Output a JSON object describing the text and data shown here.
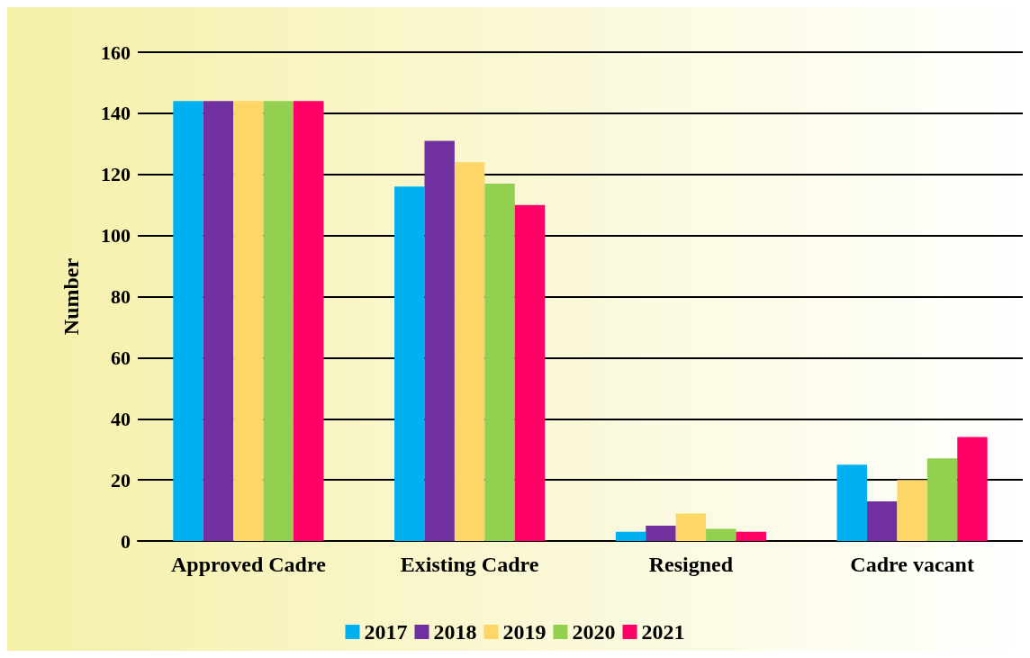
{
  "chart_data": {
    "type": "bar",
    "ylabel": "Number",
    "categories": [
      "Approved Cadre",
      "Existing Cadre",
      "Resigned",
      "Cadre vacant"
    ],
    "series": [
      {
        "name": "2017",
        "color": "#00b0f0",
        "values": [
          144,
          116,
          3,
          25
        ]
      },
      {
        "name": "2018",
        "color": "#7030a0",
        "values": [
          144,
          131,
          5,
          13
        ]
      },
      {
        "name": "2019",
        "color": "#fcd667",
        "values": [
          144,
          124,
          9,
          20
        ]
      },
      {
        "name": "2020",
        "color": "#92d050",
        "values": [
          144,
          117,
          4,
          27
        ]
      },
      {
        "name": "2021",
        "color": "#ff0066",
        "values": [
          144,
          110,
          3,
          34
        ]
      }
    ],
    "ylim": [
      0,
      160
    ],
    "yticks": [
      0,
      20,
      40,
      60,
      80,
      100,
      120,
      140,
      160
    ],
    "grid": "y",
    "legend": "bottom"
  }
}
